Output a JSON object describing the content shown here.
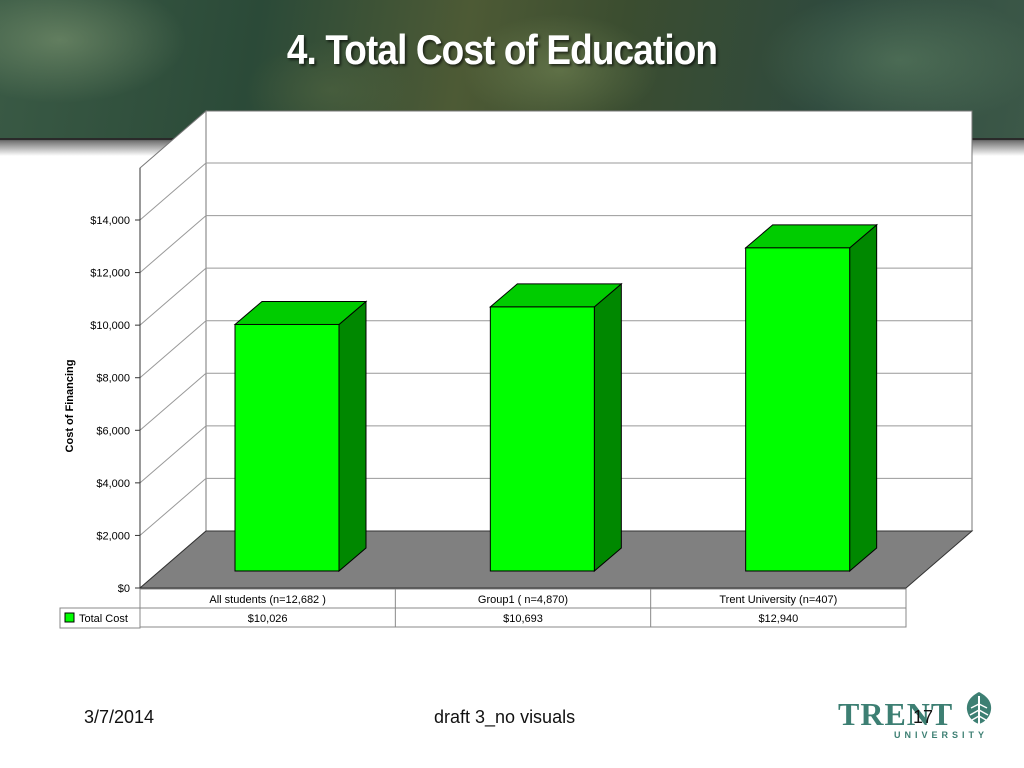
{
  "slide": {
    "title": "4. Total Cost of Education",
    "footer_date": "3/7/2014",
    "footer_center": "draft 3_no visuals",
    "page_number": "17",
    "logo_word": "TRENT",
    "logo_sub": "UNIVERSITY"
  },
  "colors": {
    "bar_front": "#00ff00",
    "bar_top": "#00cc00",
    "bar_side": "#008800",
    "floor": "#808080"
  },
  "chart_data": {
    "type": "bar",
    "categories": [
      "All students (n=12,682 )",
      "Group1 ( n=4,870)",
      "Trent University (n=407)"
    ],
    "series": [
      {
        "name": "Total Cost",
        "values": [
          10026,
          10693,
          12940
        ],
        "labels": [
          "$10,026",
          "$10,693",
          "$12,940"
        ]
      }
    ],
    "ylabel": "Cost of Financing",
    "ylim": [
      0,
      14000
    ],
    "yticks": [
      0,
      2000,
      4000,
      6000,
      8000,
      10000,
      12000,
      14000
    ],
    "ytick_labels": [
      "$0",
      "$2,000",
      "$4,000",
      "$6,000",
      "$8,000",
      "$10,000",
      "$12,000",
      "$14,000"
    ],
    "grid": true,
    "legend": "data-table"
  }
}
